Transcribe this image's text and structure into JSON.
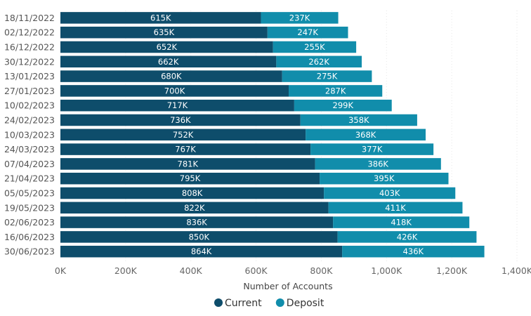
{
  "chart_data": {
    "type": "bar",
    "orientation": "horizontal",
    "stacked": true,
    "categories": [
      "18/11/2022",
      "02/12/2022",
      "16/12/2022",
      "30/12/2022",
      "13/01/2023",
      "27/01/2023",
      "10/02/2023",
      "24/02/2023",
      "10/03/2023",
      "24/03/2023",
      "07/04/2023",
      "21/04/2023",
      "05/05/2023",
      "19/05/2023",
      "02/06/2023",
      "16/06/2023",
      "30/06/2023"
    ],
    "series": [
      {
        "name": "Current",
        "color": "#0e4d6b",
        "values": [
          615000,
          635000,
          652000,
          662000,
          680000,
          700000,
          717000,
          736000,
          752000,
          767000,
          781000,
          795000,
          808000,
          822000,
          836000,
          850000,
          864000
        ],
        "labels": [
          "615K",
          "635K",
          "652K",
          "662K",
          "680K",
          "700K",
          "717K",
          "736K",
          "752K",
          "767K",
          "781K",
          "795K",
          "808K",
          "822K",
          "836K",
          "850K",
          "864K"
        ]
      },
      {
        "name": "Deposit",
        "color": "#118dab",
        "values": [
          237000,
          247000,
          255000,
          262000,
          275000,
          287000,
          299000,
          358000,
          368000,
          377000,
          386000,
          395000,
          403000,
          411000,
          418000,
          426000,
          436000
        ],
        "labels": [
          "237K",
          "247K",
          "255K",
          "262K",
          "275K",
          "287K",
          "299K",
          "358K",
          "368K",
          "377K",
          "386K",
          "395K",
          "403K",
          "411K",
          "418K",
          "426K",
          "436K"
        ]
      }
    ],
    "xlim": [
      0,
      1400000
    ],
    "xticks": [
      0,
      200000,
      400000,
      600000,
      800000,
      1000000,
      1200000,
      1400000
    ],
    "xtick_labels": [
      "0K",
      "200K",
      "400K",
      "600K",
      "800K",
      "1,000K",
      "1,200K",
      "1,400K"
    ],
    "xlabel": "Number of Accounts",
    "ylabel": "",
    "title": "",
    "grid": true,
    "legend_position": "bottom-center"
  }
}
